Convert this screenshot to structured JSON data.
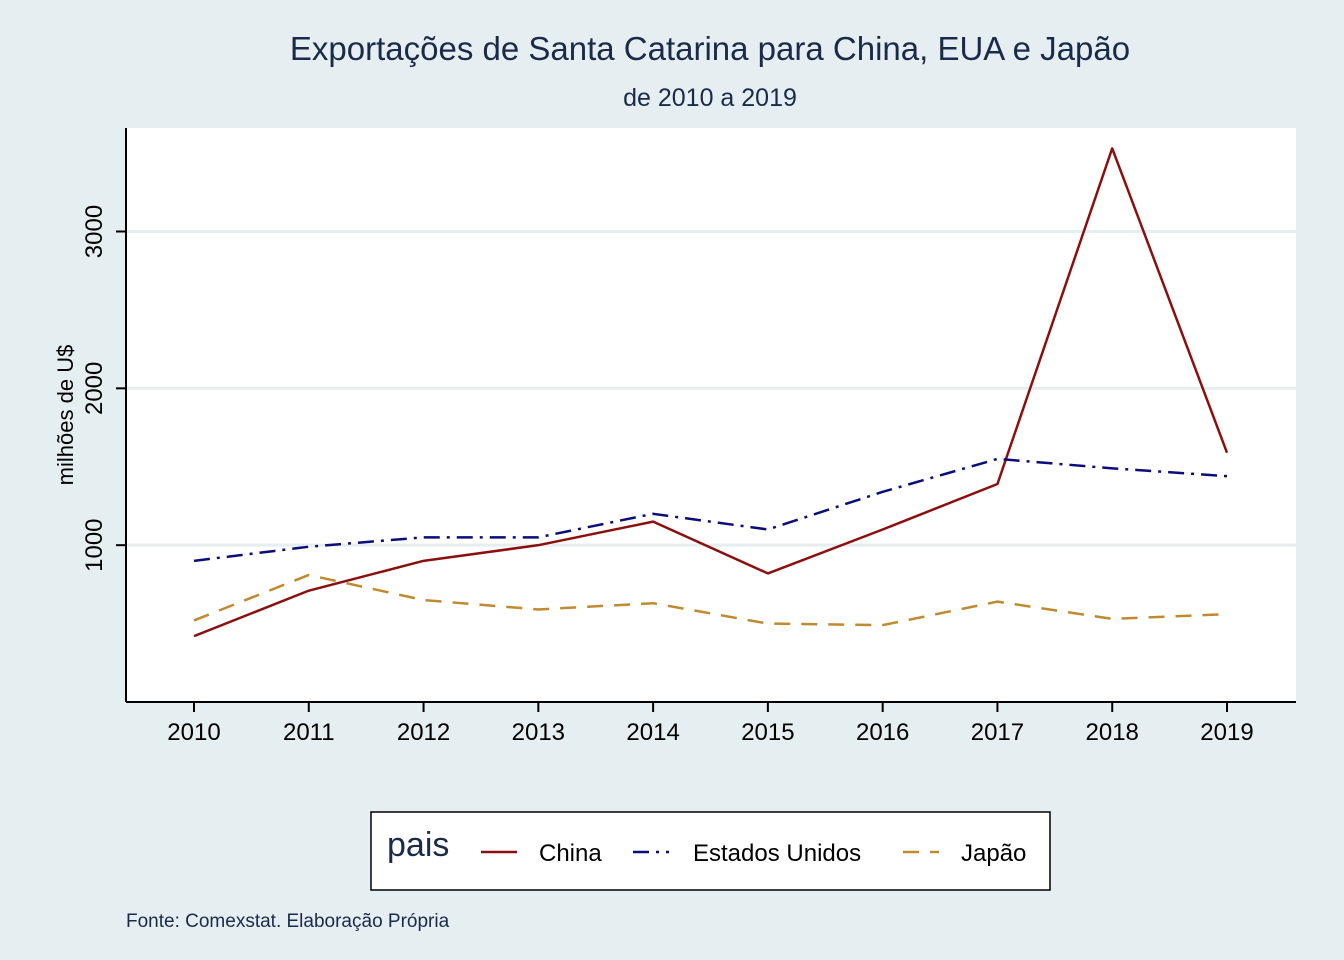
{
  "chart_data": {
    "type": "line",
    "title": "Exportações de Santa Catarina para China, EUA e Japão",
    "subtitle": "de 2010 a 2019",
    "ylabel": "milhões de U$",
    "xlabel": "",
    "x": [
      2010,
      2011,
      2012,
      2013,
      2014,
      2015,
      2016,
      2017,
      2018,
      2019
    ],
    "x_tick_labels": [
      "2010",
      "2011",
      "2012",
      "2013",
      "2014",
      "2015",
      "2016",
      "2017",
      "2018",
      "2019"
    ],
    "y_ticks": [
      1000,
      2000,
      3000
    ],
    "y_tick_labels": [
      "1000",
      "2000",
      "3000"
    ],
    "ylim": [
      0,
      3660
    ],
    "grid": "horizontal",
    "legend": {
      "title": "pais",
      "position": "bottom"
    },
    "series": [
      {
        "name": "China",
        "color": "#8b0f0f",
        "dash": "solid",
        "values": [
          420,
          710,
          900,
          1000,
          1150,
          820,
          1100,
          1390,
          3530,
          1590
        ]
      },
      {
        "name": "Estados Unidos",
        "color": "#0c0c7a",
        "dash": "dash-dot",
        "values": [
          900,
          990,
          1050,
          1050,
          1200,
          1100,
          1340,
          1550,
          1490,
          1440
        ]
      },
      {
        "name": "Japão",
        "color": "#c08a2e",
        "dash": "dashed",
        "values": [
          520,
          810,
          650,
          590,
          630,
          500,
          490,
          640,
          530,
          560
        ]
      }
    ],
    "note": "Fonte: Comexstat. Elaboração Própria"
  }
}
